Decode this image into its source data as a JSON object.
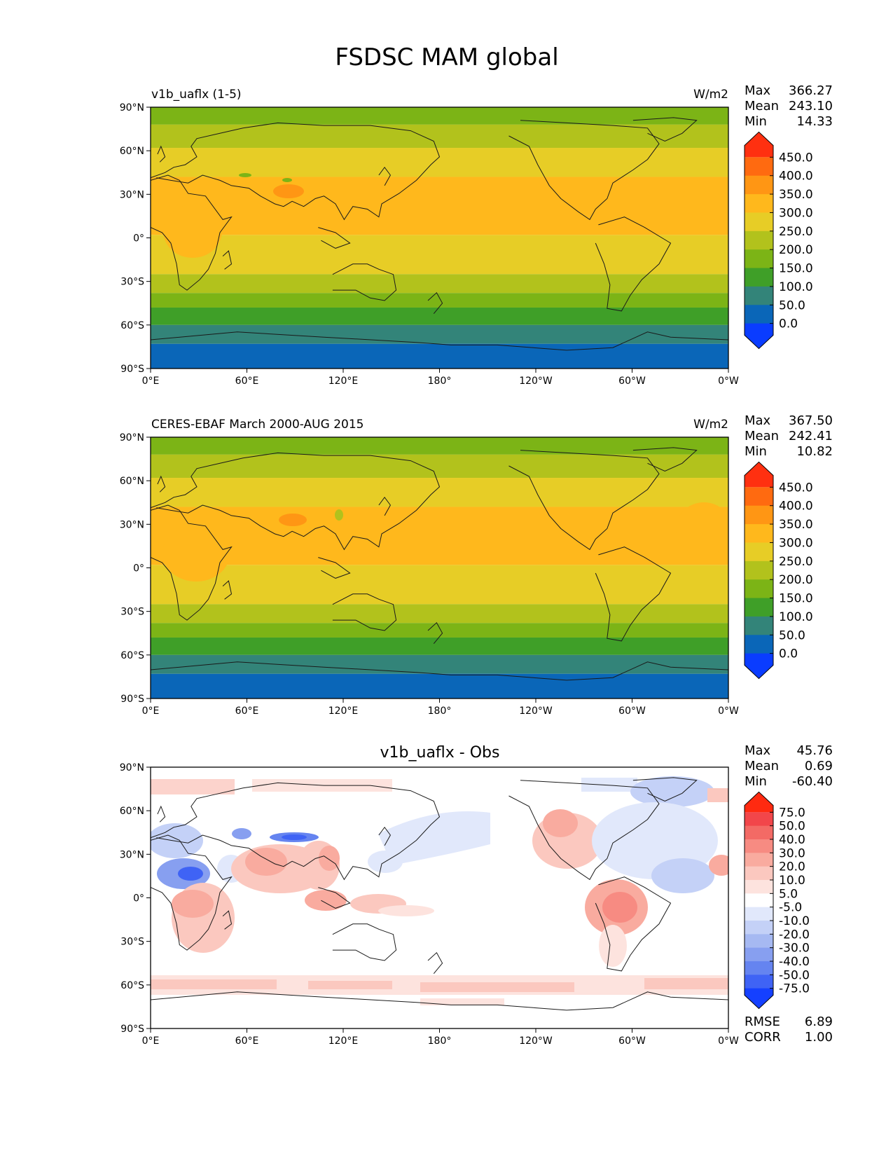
{
  "figure": {
    "title": "FSDSC MAM global"
  },
  "axis_labels": {
    "lat": [
      "90°N",
      "60°N",
      "30°N",
      "0°",
      "30°S",
      "60°S",
      "90°S"
    ],
    "lon": [
      "0°E",
      "60°E",
      "120°E",
      "180°",
      "120°W",
      "60°W",
      "0°W"
    ]
  },
  "stat_names": {
    "max": "Max",
    "mean": "Mean",
    "min": "Min",
    "rmse": "RMSE",
    "corr": "CORR"
  },
  "panels": [
    {
      "title_left": "v1b_uaflx (1-5)",
      "title_right": "W/m2",
      "title_center": "",
      "stats": {
        "max": "366.27",
        "mean": "243.10",
        "min": "14.33"
      }
    },
    {
      "title_left": "CERES-EBAF March 2000-AUG 2015",
      "title_right": "W/m2",
      "title_center": "",
      "stats": {
        "max": "367.50",
        "mean": "242.41",
        "min": "10.82"
      }
    },
    {
      "title_left": "",
      "title_right": "",
      "title_center": "v1b_uaflx - Obs",
      "stats": {
        "max": "45.76",
        "mean": "0.69",
        "min": "-60.40",
        "rmse": "6.89",
        "corr": "1.00"
      }
    }
  ],
  "colorbars": {
    "field": {
      "labels": [
        "450.0",
        "400.0",
        "350.0",
        "300.0",
        "250.0",
        "200.0",
        "150.0",
        "100.0",
        "50.0",
        "0.0"
      ],
      "colors": [
        "#ff3010",
        "#ff6a10",
        "#ff9614",
        "#ffb81c",
        "#e7cd26",
        "#b2c21c",
        "#7cb416",
        "#3f9f28",
        "#338479",
        "#0a66b8",
        "#0a3cff"
      ]
    },
    "diff": {
      "labels": [
        "75.0",
        "50.0",
        "40.0",
        "30.0",
        "20.0",
        "10.0",
        "5.0",
        "-5.0",
        "-10.0",
        "-20.0",
        "-30.0",
        "-40.0",
        "-50.0",
        "-75.0"
      ],
      "colors": [
        "#ff2a10",
        "#f2464a",
        "#f36a65",
        "#f78b82",
        "#f9ab9f",
        "#fbc8bf",
        "#fde3de",
        "#ffffff",
        "#e1e8fb",
        "#c4d1f7",
        "#a6b9f2",
        "#879ff0",
        "#6584f0",
        "#3f63f5",
        "#1540ff"
      ]
    }
  },
  "map_data": {
    "field_bands": [
      {
        "lat_north": 90,
        "lat_south": 78,
        "color": "#7cb416"
      },
      {
        "lat_north": 78,
        "lat_south": 62,
        "color": "#b2c21c"
      },
      {
        "lat_north": 62,
        "lat_south": 42,
        "color": "#e7cd26"
      },
      {
        "lat_north": 42,
        "lat_south": 2,
        "color": "#ffb81c"
      },
      {
        "lat_north": 2,
        "lat_south": -25,
        "color": "#e7cd26"
      },
      {
        "lat_north": -25,
        "lat_south": -38,
        "color": "#b2c21c"
      },
      {
        "lat_north": -38,
        "lat_south": -48,
        "color": "#7cb416"
      },
      {
        "lat_north": -48,
        "lat_south": -60,
        "color": "#3f9f28"
      },
      {
        "lat_north": -60,
        "lat_south": -73,
        "color": "#338479"
      },
      {
        "lat_north": -73,
        "lat_south": -90,
        "color": "#0a66b8"
      }
    ]
  }
}
